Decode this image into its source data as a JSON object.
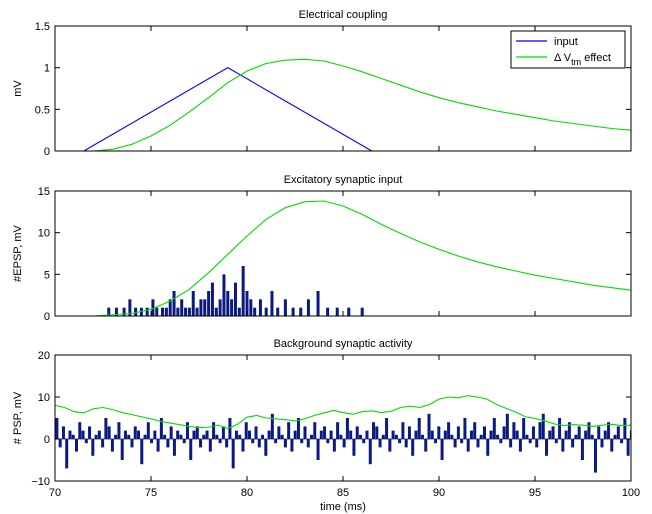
{
  "chart_data": [
    {
      "type": "line",
      "title": "Electrical coupling",
      "xlabel": "",
      "ylabel": "mV",
      "xlim": [
        70,
        100
      ],
      "ylim": [
        0,
        1.5
      ],
      "xticks": [],
      "yticks": [
        {
          "v": 0,
          "label": "0"
        },
        {
          "v": 0.5,
          "label": "0.5"
        },
        {
          "v": 1,
          "label": "1"
        },
        {
          "v": 1.5,
          "label": "1.5"
        }
      ],
      "legend": {
        "position": "top-right",
        "entries": [
          {
            "label": "input",
            "color": "#0000ff"
          },
          {
            "label": "Δ V",
            "sub": "tm",
            "suffix": " effect",
            "color": "#00dd00"
          }
        ]
      },
      "series": [
        {
          "name": "input",
          "color": "#0000ff",
          "x": [
            70,
            71.5,
            79,
            86.5,
            100
          ],
          "y": [
            0,
            0,
            1.0,
            0,
            0
          ]
        },
        {
          "name": "Δ Vtm effect",
          "color": "#00dd00",
          "x": [
            70,
            72,
            73,
            74,
            75,
            76,
            77,
            78,
            79,
            80,
            81,
            82,
            83,
            84,
            85,
            86,
            87,
            88,
            89,
            90,
            91,
            92,
            93,
            94,
            95,
            96,
            97,
            98,
            99,
            100
          ],
          "y": [
            0,
            0,
            0.02,
            0.08,
            0.18,
            0.31,
            0.47,
            0.64,
            0.82,
            0.96,
            1.05,
            1.09,
            1.1,
            1.08,
            1.02,
            0.95,
            0.87,
            0.79,
            0.71,
            0.64,
            0.58,
            0.53,
            0.48,
            0.44,
            0.4,
            0.36,
            0.33,
            0.3,
            0.27,
            0.25
          ]
        }
      ]
    },
    {
      "type": "bar",
      "title": "Excitatory synaptic input",
      "xlabel": "",
      "ylabel": "#EPSP, mV",
      "xlim": [
        70,
        100
      ],
      "ylim": [
        0,
        15
      ],
      "xticks": [],
      "yticks": [
        {
          "v": 0,
          "label": "0"
        },
        {
          "v": 5,
          "label": "5"
        },
        {
          "v": 10,
          "label": "10"
        },
        {
          "v": 15,
          "label": "15"
        }
      ],
      "bar_color": "#0a1a80",
      "bars": {
        "x": [
          72.8,
          73.2,
          73.6,
          73.9,
          74.2,
          74.5,
          74.8,
          75.1,
          75.3,
          75.6,
          75.8,
          76.0,
          76.2,
          76.4,
          76.6,
          76.8,
          77.0,
          77.2,
          77.4,
          77.6,
          77.8,
          78.0,
          78.2,
          78.4,
          78.6,
          78.8,
          79.0,
          79.2,
          79.4,
          79.6,
          79.8,
          80.0,
          80.2,
          80.4,
          80.7,
          81.0,
          81.3,
          81.6,
          82.0,
          82.4,
          82.8,
          83.2,
          83.7,
          84.2,
          84.7,
          85.3,
          86.0
        ],
        "values": [
          1,
          1,
          1,
          2,
          1,
          1,
          1,
          2,
          1,
          1,
          1,
          2,
          3,
          1,
          2,
          1,
          1,
          3,
          1,
          2,
          2,
          3,
          4,
          1,
          2,
          5,
          3,
          2,
          4,
          1,
          6,
          3,
          2,
          1,
          2,
          1,
          3,
          1,
          2,
          1,
          1,
          2,
          3,
          1,
          1,
          1,
          1
        ]
      },
      "series": [
        {
          "name": "",
          "color": "#00dd00",
          "x": [
            70,
            72,
            74,
            75,
            76,
            77,
            78,
            79,
            80,
            81,
            82,
            83,
            84,
            85,
            86,
            87,
            88,
            89,
            90,
            91,
            92,
            93,
            94,
            95,
            96,
            97,
            98,
            99,
            100
          ],
          "y": [
            0,
            0,
            0.3,
            0.8,
            1.8,
            3.2,
            5.2,
            7.4,
            9.6,
            11.6,
            13.0,
            13.7,
            13.8,
            13.2,
            12.2,
            11.0,
            9.9,
            8.9,
            8.0,
            7.2,
            6.5,
            5.9,
            5.4,
            4.9,
            4.5,
            4.1,
            3.7,
            3.4,
            3.1
          ]
        }
      ]
    },
    {
      "type": "bar",
      "title": "Background synaptic activity",
      "xlabel": "time (ms)",
      "ylabel": "# PSP, mV",
      "xlim": [
        70,
        100
      ],
      "ylim": [
        -10,
        20
      ],
      "xticks": [
        {
          "v": 70,
          "label": "70"
        },
        {
          "v": 75,
          "label": "75"
        },
        {
          "v": 80,
          "label": "80"
        },
        {
          "v": 85,
          "label": "85"
        },
        {
          "v": 90,
          "label": "90"
        },
        {
          "v": 95,
          "label": "95"
        },
        {
          "v": 100,
          "label": "100"
        }
      ],
      "yticks": [
        {
          "v": -10,
          "label": "−10"
        },
        {
          "v": 0,
          "label": "0"
        },
        {
          "v": 10,
          "label": "10"
        },
        {
          "v": 20,
          "label": "20"
        }
      ],
      "bar_color": "#0a1a80",
      "bars": {
        "x_start": 70.1,
        "x_step": 0.17,
        "values": [
          5,
          -2,
          3,
          -7,
          2,
          1,
          -3,
          4,
          2,
          -1,
          3,
          -4,
          1,
          2,
          -2,
          5,
          3,
          -3,
          1,
          4,
          -5,
          2,
          1,
          -2,
          3,
          2,
          -6,
          1,
          4,
          -1,
          2,
          -3,
          5,
          1,
          -2,
          3,
          -4,
          2,
          1,
          -1,
          4,
          -5,
          2,
          3,
          -2,
          1,
          2,
          -3,
          4,
          1,
          -1,
          3,
          -2,
          5,
          -7,
          2,
          1,
          -3,
          4,
          2,
          -1,
          3,
          -2,
          1,
          -4,
          2,
          6,
          -1,
          3,
          1,
          -2,
          4,
          -3,
          2,
          5,
          -1,
          3,
          -2,
          1,
          4,
          -5,
          2,
          3,
          -1,
          2,
          -3,
          4,
          1,
          -2,
          5,
          2,
          -4,
          3,
          1,
          -1,
          2,
          -6,
          4,
          3,
          -2,
          1,
          5,
          -3,
          2,
          1,
          -1,
          4,
          -2,
          3,
          -4,
          2,
          5,
          1,
          -3,
          6,
          2,
          -1,
          3,
          -5,
          2,
          4,
          1,
          -2,
          3,
          -1,
          5,
          -3,
          2,
          4,
          -2,
          1,
          3,
          -4,
          2,
          5,
          1,
          -1,
          3,
          6,
          -2,
          4,
          2,
          -3,
          5,
          1,
          -1,
          3,
          -2,
          4,
          6,
          -4,
          2,
          3,
          -1,
          5,
          -3,
          2,
          4,
          -2,
          1,
          3,
          -5,
          2,
          4,
          1,
          -8,
          3,
          -2,
          2,
          4,
          -3,
          1,
          3,
          -1,
          5,
          -4,
          2,
          -6,
          3,
          1,
          -2,
          4,
          2,
          -1
        ]
      },
      "series": [
        {
          "name": "",
          "color": "#00dd00",
          "x": [
            70,
            70.5,
            71,
            71.5,
            72,
            72.5,
            73,
            73.5,
            74,
            74.5,
            75,
            75.5,
            76,
            76.5,
            77,
            77.5,
            78,
            78.5,
            79,
            79.5,
            80,
            80.5,
            81,
            81.5,
            82,
            82.5,
            83,
            83.5,
            84,
            84.5,
            85,
            85.5,
            86,
            86.5,
            87,
            87.5,
            88,
            88.5,
            89,
            89.5,
            90,
            90.5,
            91,
            91.5,
            92,
            92.5,
            93,
            93.5,
            94,
            94.5,
            95,
            95.5,
            96,
            96.5,
            97,
            97.5,
            98,
            98.5,
            99,
            99.5,
            100
          ],
          "y": [
            8,
            7.5,
            6.5,
            6.2,
            7.2,
            7.5,
            7.0,
            6.3,
            5.8,
            5.3,
            4.8,
            4.2,
            3.8,
            3.4,
            3.0,
            2.7,
            2.8,
            3.3,
            2.5,
            3.5,
            5.2,
            5.6,
            5.0,
            4.8,
            4.6,
            4.3,
            4.8,
            5.6,
            6.2,
            6.8,
            6.3,
            5.9,
            6.5,
            6.7,
            6.3,
            6.6,
            7.5,
            7.8,
            7.5,
            8.2,
            9.5,
            10.0,
            9.8,
            10.3,
            10.0,
            9.5,
            8.2,
            7.3,
            6.4,
            5.3,
            4.9,
            4.3,
            3.6,
            3.2,
            3.4,
            3.3,
            3.0,
            3.3,
            3.5,
            3.2,
            3.3
          ]
        }
      ]
    }
  ]
}
